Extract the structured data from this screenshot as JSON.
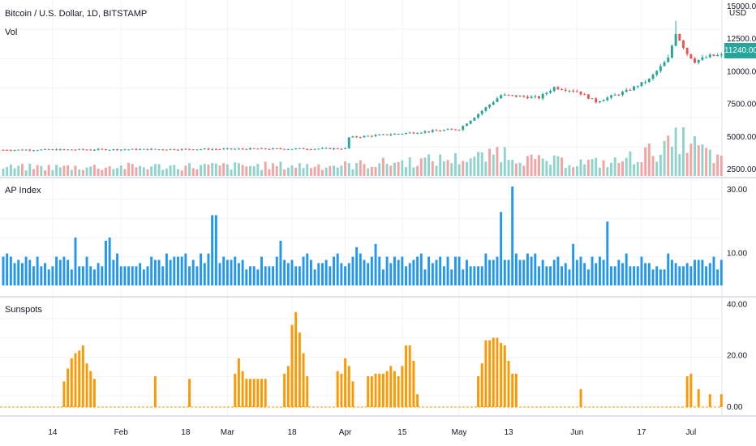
{
  "header": {
    "symbol_title": "Bitcoin / U.S. Dollar, 1D, BITSTAMP",
    "volume_label": "Vol",
    "currency": "USD",
    "last_price": "11240.00"
  },
  "colors": {
    "up": "#26a69a",
    "down": "#ef5350",
    "vol_up": "#8ed4cc",
    "vol_down": "#f3a3a1",
    "ap_bar": "#2196f3",
    "sunspot_bar": "#ff9800",
    "grid": "#f0f3fa",
    "separator": "#e0e3eb"
  },
  "x_axis": {
    "labels": [
      "14",
      "Feb",
      "18",
      "Mar",
      "18",
      "Apr",
      "15",
      "May",
      "13",
      "Jun",
      "17",
      "Jul"
    ],
    "label_days": [
      13,
      31,
      48,
      59,
      76,
      90,
      105,
      120,
      133,
      151,
      168,
      181
    ]
  },
  "chart_data": [
    {
      "type": "candlestick",
      "name": "Bitcoin / U.S. Dollar, 1D, BITSTAMP",
      "y_ticks": [
        "15000.00",
        "12500.00",
        "10000.00",
        "7500.00",
        "5000.00",
        "2500.00"
      ],
      "ylim": [
        2000,
        15500
      ],
      "key_points": [
        {
          "day": 0,
          "close": 4000
        },
        {
          "day": 90,
          "close": 4100
        },
        {
          "day": 91,
          "close": 4950
        },
        {
          "day": 120,
          "close": 5600
        },
        {
          "day": 126,
          "close": 7000
        },
        {
          "day": 131,
          "close": 8200
        },
        {
          "day": 141,
          "close": 8000
        },
        {
          "day": 145,
          "close": 8800
        },
        {
          "day": 151,
          "close": 8500
        },
        {
          "day": 156,
          "close": 7700
        },
        {
          "day": 164,
          "close": 8500
        },
        {
          "day": 170,
          "close": 9400
        },
        {
          "day": 175,
          "close": 11000
        },
        {
          "day": 177,
          "close": 13000
        },
        {
          "day": 180,
          "close": 11400
        },
        {
          "day": 182,
          "close": 10800
        },
        {
          "day": 186,
          "close": 11200
        },
        {
          "day": 189,
          "close": 11240
        }
      ],
      "notable": {
        "max_high_day": 177,
        "max_high": 13900
      }
    },
    {
      "type": "bar",
      "name": "Vol",
      "key_points": [
        {
          "day": 0,
          "level": 0.2
        },
        {
          "day": 90,
          "level": 0.25
        },
        {
          "day": 128,
          "level": 0.45
        },
        {
          "day": 130,
          "level": 0.6
        },
        {
          "day": 140,
          "level": 0.35
        },
        {
          "day": 160,
          "level": 0.3
        },
        {
          "day": 176,
          "level": 0.7
        },
        {
          "day": 178,
          "level": 0.9
        },
        {
          "day": 185,
          "level": 0.55
        },
        {
          "day": 189,
          "level": 0.35
        }
      ]
    },
    {
      "type": "bar",
      "name": "AP Index",
      "title": "AP Index",
      "y_ticks": [
        "30.00",
        "10.00"
      ],
      "ylim": [
        0,
        32
      ],
      "baseline": 5,
      "values": [
        {
          "day": 0,
          "value": 9
        },
        {
          "day": 19,
          "value": 15
        },
        {
          "day": 27,
          "value": 14
        },
        {
          "day": 28,
          "value": 15
        },
        {
          "day": 55,
          "value": 22
        },
        {
          "day": 56,
          "value": 22
        },
        {
          "day": 73,
          "value": 14
        },
        {
          "day": 93,
          "value": 12
        },
        {
          "day": 98,
          "value": 13
        },
        {
          "day": 131,
          "value": 23
        },
        {
          "day": 134,
          "value": 31
        },
        {
          "day": 150,
          "value": 13
        },
        {
          "day": 159,
          "value": 20
        },
        {
          "day": 189,
          "value": 8
        }
      ]
    },
    {
      "type": "bar",
      "name": "Sunspots",
      "title": "Sunspots",
      "y_ticks": [
        "40.00",
        "20.00",
        "0.00"
      ],
      "ylim": [
        0,
        42
      ],
      "series_segments": [
        {
          "start_day": 16,
          "values": [
            10,
            15,
            19,
            21,
            22,
            24,
            17,
            14,
            11
          ]
        },
        {
          "start_day": 40,
          "values": [
            12
          ]
        },
        {
          "start_day": 49,
          "values": [
            11
          ]
        },
        {
          "start_day": 61,
          "values": [
            13,
            19,
            14,
            11,
            11,
            11,
            11,
            11,
            11
          ]
        },
        {
          "start_day": 74,
          "values": [
            13,
            16,
            32,
            37,
            29,
            21,
            12
          ]
        },
        {
          "start_day": 88,
          "values": [
            14,
            13,
            19,
            16,
            10
          ]
        },
        {
          "start_day": 96,
          "values": [
            12,
            12,
            13,
            13,
            13,
            14,
            16,
            14,
            12,
            16,
            24,
            24,
            18,
            5
          ]
        },
        {
          "start_day": 125,
          "values": [
            12,
            17,
            26,
            26,
            27,
            27,
            25,
            24,
            18,
            13,
            13
          ]
        },
        {
          "start_day": 152,
          "values": [
            7
          ]
        },
        {
          "start_day": 180,
          "values": [
            12,
            13
          ]
        },
        {
          "start_day": 183,
          "values": [
            7
          ]
        },
        {
          "start_day": 186,
          "values": [
            5
          ]
        },
        {
          "start_day": 189,
          "values": [
            5
          ]
        }
      ]
    }
  ]
}
